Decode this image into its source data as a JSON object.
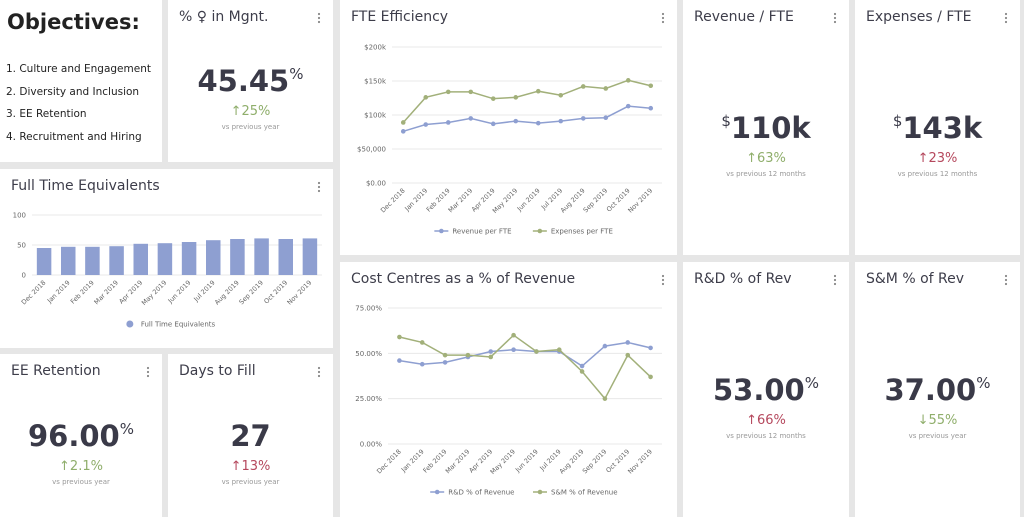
{
  "objectives": {
    "title": "Objectives:",
    "items": [
      "1. Culture and Engagement",
      "2. Diversity and Inclusion",
      "3. EE Retention",
      "4. Recruitment and Hiring"
    ]
  },
  "kpis": [
    {
      "title": "% ♀ in Mgnt.",
      "value": "45.45",
      "suffix": "%",
      "change": "↑25%",
      "change_color": "#8fae6b",
      "note": "vs previous year"
    },
    {
      "title": "Revenue / FTE",
      "prefix": "$",
      "value": "110k",
      "change": "↑63%",
      "change_color": "#8fae6b",
      "note": "vs previous 12 months"
    },
    {
      "title": "Expenses / FTE",
      "prefix": "$",
      "value": "143k",
      "change": "↑23%",
      "change_color": "#b5485d",
      "note": "vs previous 12 months"
    },
    {
      "title": "R&D % of Rev",
      "value": "53.00",
      "suffix": "%",
      "change": "↑66%",
      "change_color": "#b5485d",
      "note": "vs previous 12 months"
    },
    {
      "title": "S&M % of Rev",
      "value": "37.00",
      "suffix": "%",
      "change": "↓55%",
      "change_color": "#8fae6b",
      "note": "vs previous year"
    },
    {
      "title": "EE Retention",
      "value": "96.00",
      "suffix": "%",
      "change": "↑2.1%",
      "change_color": "#8fae6b",
      "note": "vs previous year"
    },
    {
      "title": "Days to Fill",
      "value": "27",
      "change": "↑13%",
      "change_color": "#b5485d",
      "note": "vs previous year"
    }
  ],
  "chart_data": [
    {
      "type": "line",
      "title": "FTE Efficiency",
      "categories": [
        "Dec 2018",
        "Jan 2019",
        "Feb 2019",
        "Mar 2019",
        "Apr 2019",
        "May 2019",
        "Jun 2019",
        "Jul 2019",
        "Aug 2019",
        "Sep 2019",
        "Oct 2019",
        "Nov 2019"
      ],
      "series": [
        {
          "name": "Revenue per FTE",
          "color": "#8e9fd1",
          "values": [
            76000,
            86000,
            89000,
            95000,
            87000,
            91000,
            88000,
            91000,
            95000,
            96000,
            113000,
            110000
          ]
        },
        {
          "name": "Expenses per FTE",
          "color": "#a2b07a",
          "values": [
            89000,
            126000,
            134000,
            134000,
            124000,
            126000,
            135000,
            129000,
            142000,
            139000,
            151000,
            143000
          ]
        }
      ],
      "ylim": [
        0,
        200000
      ],
      "yticks": [
        {
          "value": 0,
          "label": "$0.00"
        },
        {
          "value": 50000,
          "label": "$50,000"
        },
        {
          "value": 100000,
          "label": "$100k"
        },
        {
          "value": 150000,
          "label": "$150k"
        },
        {
          "value": 200000,
          "label": "$200k"
        }
      ],
      "grid": true
    },
    {
      "type": "bar",
      "title": "Full Time Equivalents",
      "categories": [
        "Dec 2018",
        "Jan 2019",
        "Feb 2019",
        "Mar 2019",
        "Apr 2019",
        "May 2019",
        "Jun 2019",
        "Jul 2019",
        "Aug 2019",
        "Sep 2019",
        "Oct 2019",
        "Nov 2019"
      ],
      "series": [
        {
          "name": "Full Time Equivalents",
          "color": "#8e9fd1",
          "values": [
            45,
            47,
            47,
            48,
            52,
            53,
            55,
            58,
            60,
            61,
            60,
            61
          ]
        }
      ],
      "ylim": [
        0,
        100
      ],
      "yticks": [
        0,
        50,
        100
      ],
      "grid": true
    },
    {
      "type": "line",
      "title": "Cost Centres as a % of Revenue",
      "categories": [
        "Dec 2018",
        "Jan 2019",
        "Feb 2019",
        "Mar 2019",
        "Apr 2019",
        "May 2019",
        "Jun 2019",
        "Jul 2019",
        "Aug 2019",
        "Sep 2019",
        "Oct 2019",
        "Nov 2019"
      ],
      "series": [
        {
          "name": "R&D % of Revenue",
          "color": "#8e9fd1",
          "values": [
            46,
            44,
            45,
            48,
            51,
            52,
            51,
            51,
            43,
            54,
            56,
            53
          ]
        },
        {
          "name": "S&M % of Revenue",
          "color": "#a2b07a",
          "values": [
            59,
            56,
            49,
            49,
            48,
            60,
            51,
            52,
            40,
            25,
            49,
            37
          ]
        }
      ],
      "ylim": [
        0,
        75
      ],
      "yticks": [
        {
          "value": 0,
          "label": "0.00%"
        },
        {
          "value": 25,
          "label": "25.00%"
        },
        {
          "value": 50,
          "label": "50.00%"
        },
        {
          "value": 75,
          "label": "75.00%"
        }
      ],
      "grid": true
    }
  ]
}
